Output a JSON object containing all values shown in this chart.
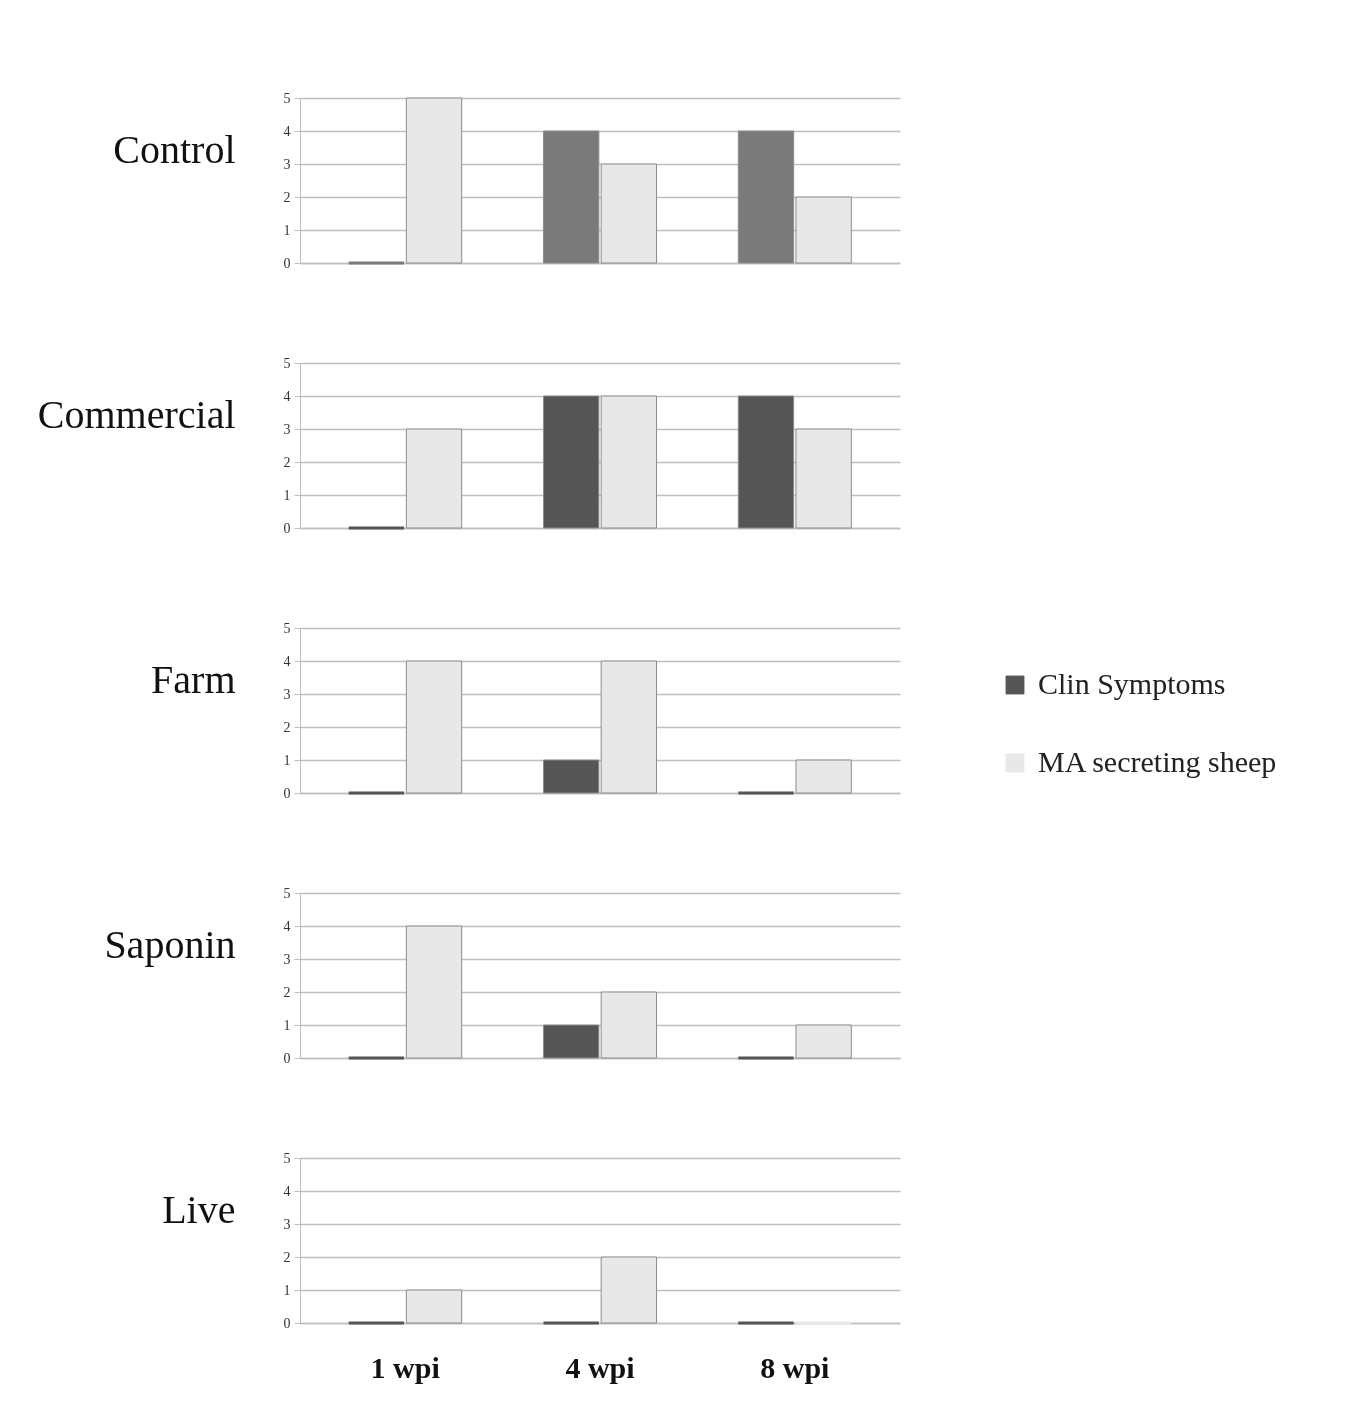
{
  "chart_data": [
    {
      "type": "bar",
      "ylabel": "Control",
      "categories": [
        "1 wpi",
        "4 wpi",
        "8 wpi"
      ],
      "series": [
        {
          "color": "#7a7a7a",
          "values": [
            0,
            4,
            4
          ]
        },
        {
          "color": "#e8e8e8",
          "values": [
            5,
            3,
            2
          ]
        }
      ],
      "ylim": [
        0,
        5
      ],
      "yticks": [
        0,
        1,
        2,
        3,
        4,
        5
      ],
      "grid": "y",
      "tick_labels": "y"
    },
    {
      "type": "bar",
      "ylabel": "Commercial",
      "categories": [
        "1 wpi",
        "4 wpi",
        "8 wpi"
      ],
      "series": [
        {
          "color": "#555555",
          "values": [
            0,
            4,
            4
          ]
        },
        {
          "color": "#e8e8e8",
          "values": [
            3,
            4,
            3
          ]
        }
      ],
      "ylim": [
        0,
        5
      ],
      "yticks": [
        0,
        1,
        2,
        3,
        4,
        5
      ],
      "grid": "y",
      "tick_labels": "y"
    },
    {
      "type": "bar",
      "ylabel": "Farm",
      "categories": [
        "1 wpi",
        "4 wpi",
        "8 wpi"
      ],
      "series": [
        {
          "name": "Clin Symptoms",
          "color": "#555555",
          "values": [
            0,
            1,
            0
          ]
        },
        {
          "name": "MA secreting sheep",
          "color": "#e8e8e8",
          "values": [
            4,
            4,
            1
          ]
        }
      ],
      "ylim": [
        0,
        5
      ],
      "yticks": [
        0,
        1,
        2,
        3,
        4,
        5
      ],
      "grid": "y",
      "tick_labels": "y",
      "legend": "right"
    },
    {
      "type": "bar",
      "ylabel": "Saponin",
      "categories": [
        "1 wpi",
        "4 wpi",
        "8 wpi"
      ],
      "series": [
        {
          "color": "#555555",
          "values": [
            0,
            1,
            0
          ]
        },
        {
          "color": "#e8e8e8",
          "values": [
            4,
            2,
            1
          ]
        }
      ],
      "ylim": [
        0,
        5
      ],
      "yticks": [
        0,
        1,
        2,
        3,
        4,
        5
      ],
      "grid": "y",
      "tick_labels": "y"
    },
    {
      "type": "bar",
      "ylabel": "Live",
      "categories": [
        "1 wpi",
        "4 wpi",
        "8 wpi"
      ],
      "series": [
        {
          "color": "#555555",
          "values": [
            0,
            0,
            0
          ]
        },
        {
          "color": "#e8e8e8",
          "values": [
            1,
            2,
            0
          ]
        }
      ],
      "ylim": [
        0,
        5
      ],
      "yticks": [
        0,
        1,
        2,
        3,
        4,
        5
      ],
      "grid": "y"
    }
  ]
}
